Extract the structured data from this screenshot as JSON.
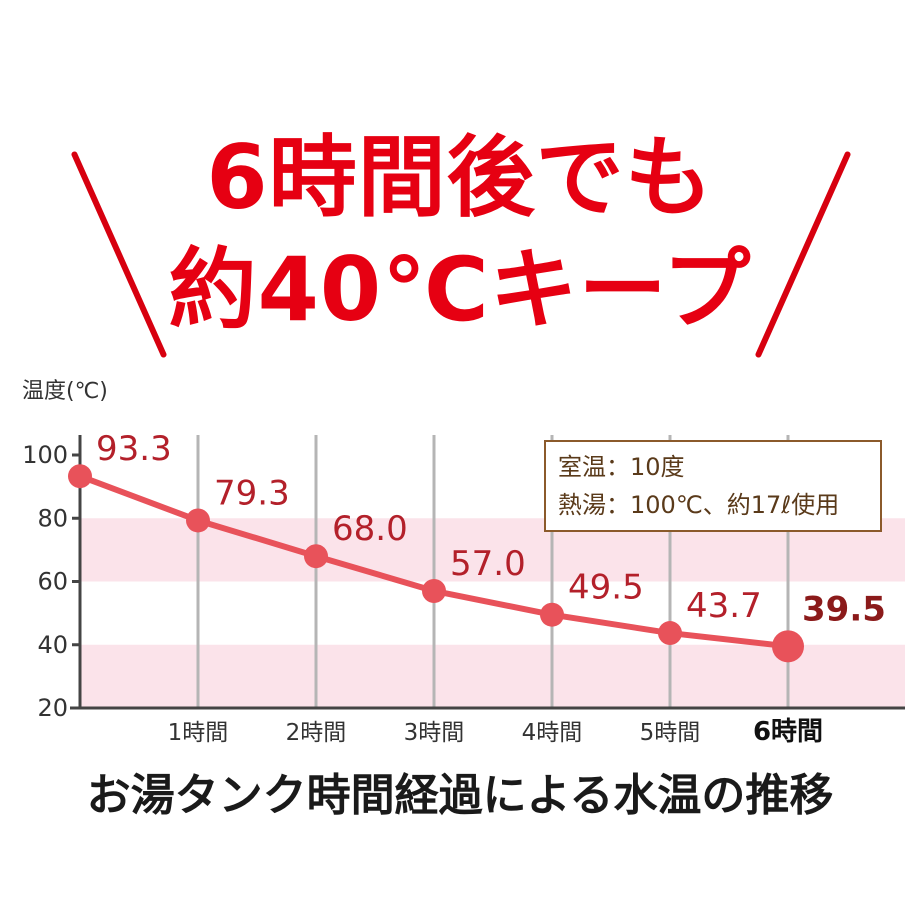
{
  "headline": {
    "line1": "6時間後でも",
    "line2": "約40℃キープ"
  },
  "legend": {
    "room_temp": "室温：10度",
    "hot_water": "熱湯：100℃、約17ℓ使用"
  },
  "subtitle": "お湯タンク時間経過による水温の推移",
  "colors": {
    "accent": "#e60012",
    "line": "#e8525a",
    "label": "#b3202a",
    "last_label": "#8b1a1a",
    "band": "#fbe3ea",
    "legend_border": "#8b5a2b"
  },
  "chart_data": {
    "type": "line",
    "ylabel": "温度(℃)",
    "xlabel": "",
    "ylim": [
      20,
      100
    ],
    "yticks": [
      "100",
      "80",
      "60",
      "40",
      "20"
    ],
    "categories": [
      "",
      "1時間",
      "2時間",
      "3時間",
      "4時間",
      "5時間",
      "6時間"
    ],
    "series": [
      {
        "values": [
          93.3,
          79.3,
          68.0,
          57.0,
          49.5,
          43.7,
          39.5
        ],
        "labels": [
          "93.3",
          "79.3",
          "68.0",
          "57.0",
          "49.5",
          "43.7",
          "39.5"
        ]
      }
    ],
    "grid": true
  }
}
